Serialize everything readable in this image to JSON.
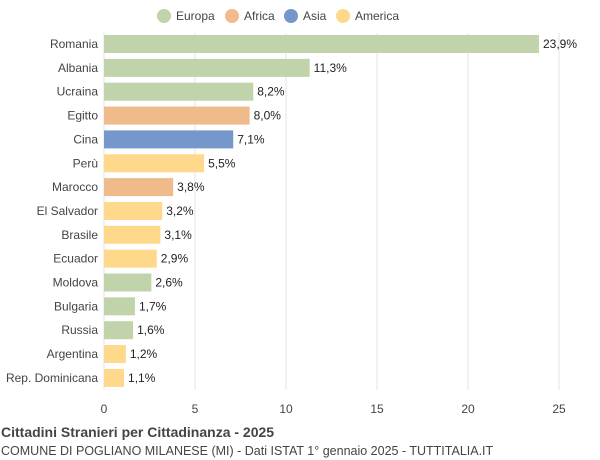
{
  "chart_data": {
    "type": "bar",
    "orientation": "horizontal",
    "title": "Cittadini Stranieri per Cittadinanza - 2025",
    "subtitle": "COMUNE DI POGLIANO MILANESE (MI) - Dati ISTAT 1° gennaio 2025 - TUTTITALIA.IT",
    "xlim": [
      0,
      25
    ],
    "x_ticks": [
      0,
      5,
      10,
      15,
      20,
      25
    ],
    "grid": true,
    "legend_position": "top",
    "legend": [
      {
        "name": "Europa",
        "color": "#c0d3ab"
      },
      {
        "name": "Africa",
        "color": "#efbb8b"
      },
      {
        "name": "Asia",
        "color": "#7697cc"
      },
      {
        "name": "America",
        "color": "#fed98b"
      }
    ],
    "categories": [
      "Romania",
      "Albania",
      "Ucraina",
      "Egitto",
      "Cina",
      "Perù",
      "Marocco",
      "El Salvador",
      "Brasile",
      "Ecuador",
      "Moldova",
      "Bulgaria",
      "Russia",
      "Argentina",
      "Rep. Dominicana"
    ],
    "values": [
      23.9,
      11.3,
      8.2,
      8.0,
      7.1,
      5.5,
      3.8,
      3.2,
      3.1,
      2.9,
      2.6,
      1.7,
      1.6,
      1.2,
      1.1
    ],
    "value_labels": [
      "23,9%",
      "11,3%",
      "8,2%",
      "8,0%",
      "7,1%",
      "5,5%",
      "3,8%",
      "3,2%",
      "3,1%",
      "2,9%",
      "2,6%",
      "1,7%",
      "1,6%",
      "1,2%",
      "1,1%"
    ],
    "groups": [
      "Europa",
      "Europa",
      "Europa",
      "Africa",
      "Asia",
      "America",
      "Africa",
      "America",
      "America",
      "America",
      "Europa",
      "Europa",
      "Europa",
      "America",
      "America"
    ]
  }
}
